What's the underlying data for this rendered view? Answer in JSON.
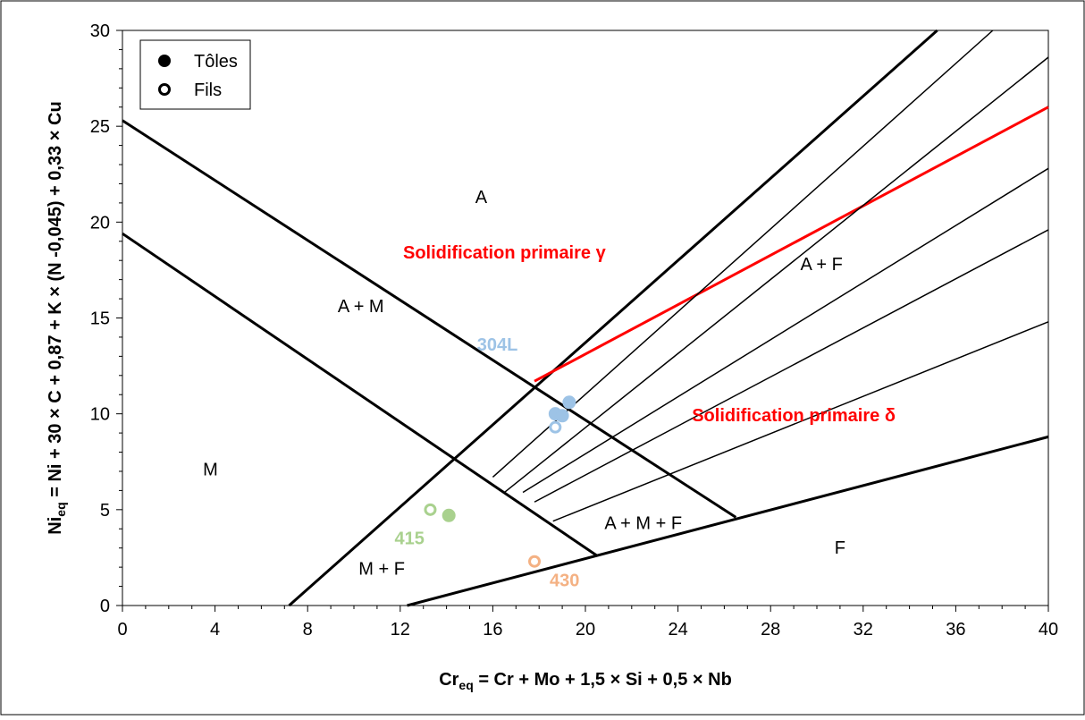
{
  "chart_data": {
    "type": "scatter",
    "xlim": [
      0,
      40
    ],
    "ylim": [
      0,
      30
    ],
    "x_ticks": [
      0,
      4,
      8,
      12,
      16,
      20,
      24,
      28,
      32,
      36,
      40
    ],
    "y_ticks": [
      0,
      5,
      10,
      15,
      20,
      25,
      30
    ],
    "xlabel": {
      "main": "Cr",
      "sub": "eq",
      "rest": " = Cr + Mo + 1,5 × Si + 0,5 × Nb"
    },
    "ylabel": {
      "main": "Ni",
      "sub": "eq",
      "rest": " = Ni + 30 × C + 0,87 + K × (N -0,045) + 0,33 × Cu"
    },
    "legend": {
      "position": "top-left",
      "items": [
        {
          "label": "Tôles",
          "marker": "filled-circle"
        },
        {
          "label": "Fils",
          "marker": "open-circle"
        }
      ]
    },
    "region_labels": [
      {
        "text": "A",
        "x": 15.5,
        "y": 21
      },
      {
        "text": "A + M",
        "x": 10.3,
        "y": 15.3
      },
      {
        "text": "M",
        "x": 3.8,
        "y": 6.8
      },
      {
        "text": "A + F",
        "x": 30.2,
        "y": 17.5
      },
      {
        "text": "A + M + F",
        "x": 22.5,
        "y": 4.0
      },
      {
        "text": "M + F",
        "x": 11.2,
        "y": 1.6
      },
      {
        "text": "F",
        "x": 31.0,
        "y": 2.7
      }
    ],
    "annotations": [
      {
        "text": "Solidification primaire γ",
        "x": 16.5,
        "y": 18.1,
        "color": "#ff0000"
      },
      {
        "text": "Solidification primaire δ",
        "x": 29.0,
        "y": 9.6,
        "color": "#ff0000"
      }
    ],
    "series": [
      {
        "name": "304L",
        "color": "#9dc3e6",
        "label_pos": {
          "x": 16.2,
          "y": 13.3
        },
        "points": [
          {
            "x": 19.3,
            "y": 10.6,
            "filled": true
          },
          {
            "x": 18.7,
            "y": 10.0,
            "filled": true
          },
          {
            "x": 19.0,
            "y": 9.9,
            "filled": true
          },
          {
            "x": 18.7,
            "y": 9.3,
            "filled": false
          }
        ]
      },
      {
        "name": "415",
        "color": "#a9d18e",
        "label_pos": {
          "x": 12.4,
          "y": 3.2
        },
        "points": [
          {
            "x": 14.1,
            "y": 4.7,
            "filled": true
          },
          {
            "x": 13.3,
            "y": 5.0,
            "filled": false
          }
        ]
      },
      {
        "name": "430",
        "color": "#f4b183",
        "label_pos": {
          "x": 19.1,
          "y": 1.0
        },
        "points": [
          {
            "x": 17.8,
            "y": 2.3,
            "filled": false
          }
        ]
      }
    ],
    "boundary_lines": [
      {
        "from": [
          0,
          25.3
        ],
        "to": [
          26.5,
          4.6
        ],
        "weight": "thick",
        "color": "#000000"
      },
      {
        "from": [
          0,
          19.4
        ],
        "to": [
          20.5,
          2.6
        ],
        "weight": "thick",
        "color": "#000000"
      },
      {
        "from": [
          7.2,
          0
        ],
        "to": [
          35.2,
          30
        ],
        "weight": "thick",
        "color": "#000000"
      },
      {
        "from": [
          12.3,
          0
        ],
        "to": [
          40,
          8.8
        ],
        "weight": "thick",
        "color": "#000000"
      },
      {
        "from": [
          17.8,
          11.7
        ],
        "to": [
          40,
          26.0
        ],
        "weight": "medium",
        "color": "#ff0000"
      },
      {
        "from": [
          16.0,
          6.7
        ],
        "to": [
          37.6,
          30
        ],
        "weight": "thin",
        "color": "#000000"
      },
      {
        "from": [
          16.5,
          5.9
        ],
        "to": [
          40,
          28.6
        ],
        "weight": "thin",
        "color": "#000000"
      },
      {
        "from": [
          17.3,
          5.9
        ],
        "to": [
          40,
          22.8
        ],
        "weight": "thin",
        "color": "#000000"
      },
      {
        "from": [
          17.8,
          5.4
        ],
        "to": [
          40,
          19.6
        ],
        "weight": "thin",
        "color": "#000000"
      },
      {
        "from": [
          18.6,
          4.4
        ],
        "to": [
          40,
          14.8
        ],
        "weight": "thin",
        "color": "#000000"
      }
    ]
  }
}
